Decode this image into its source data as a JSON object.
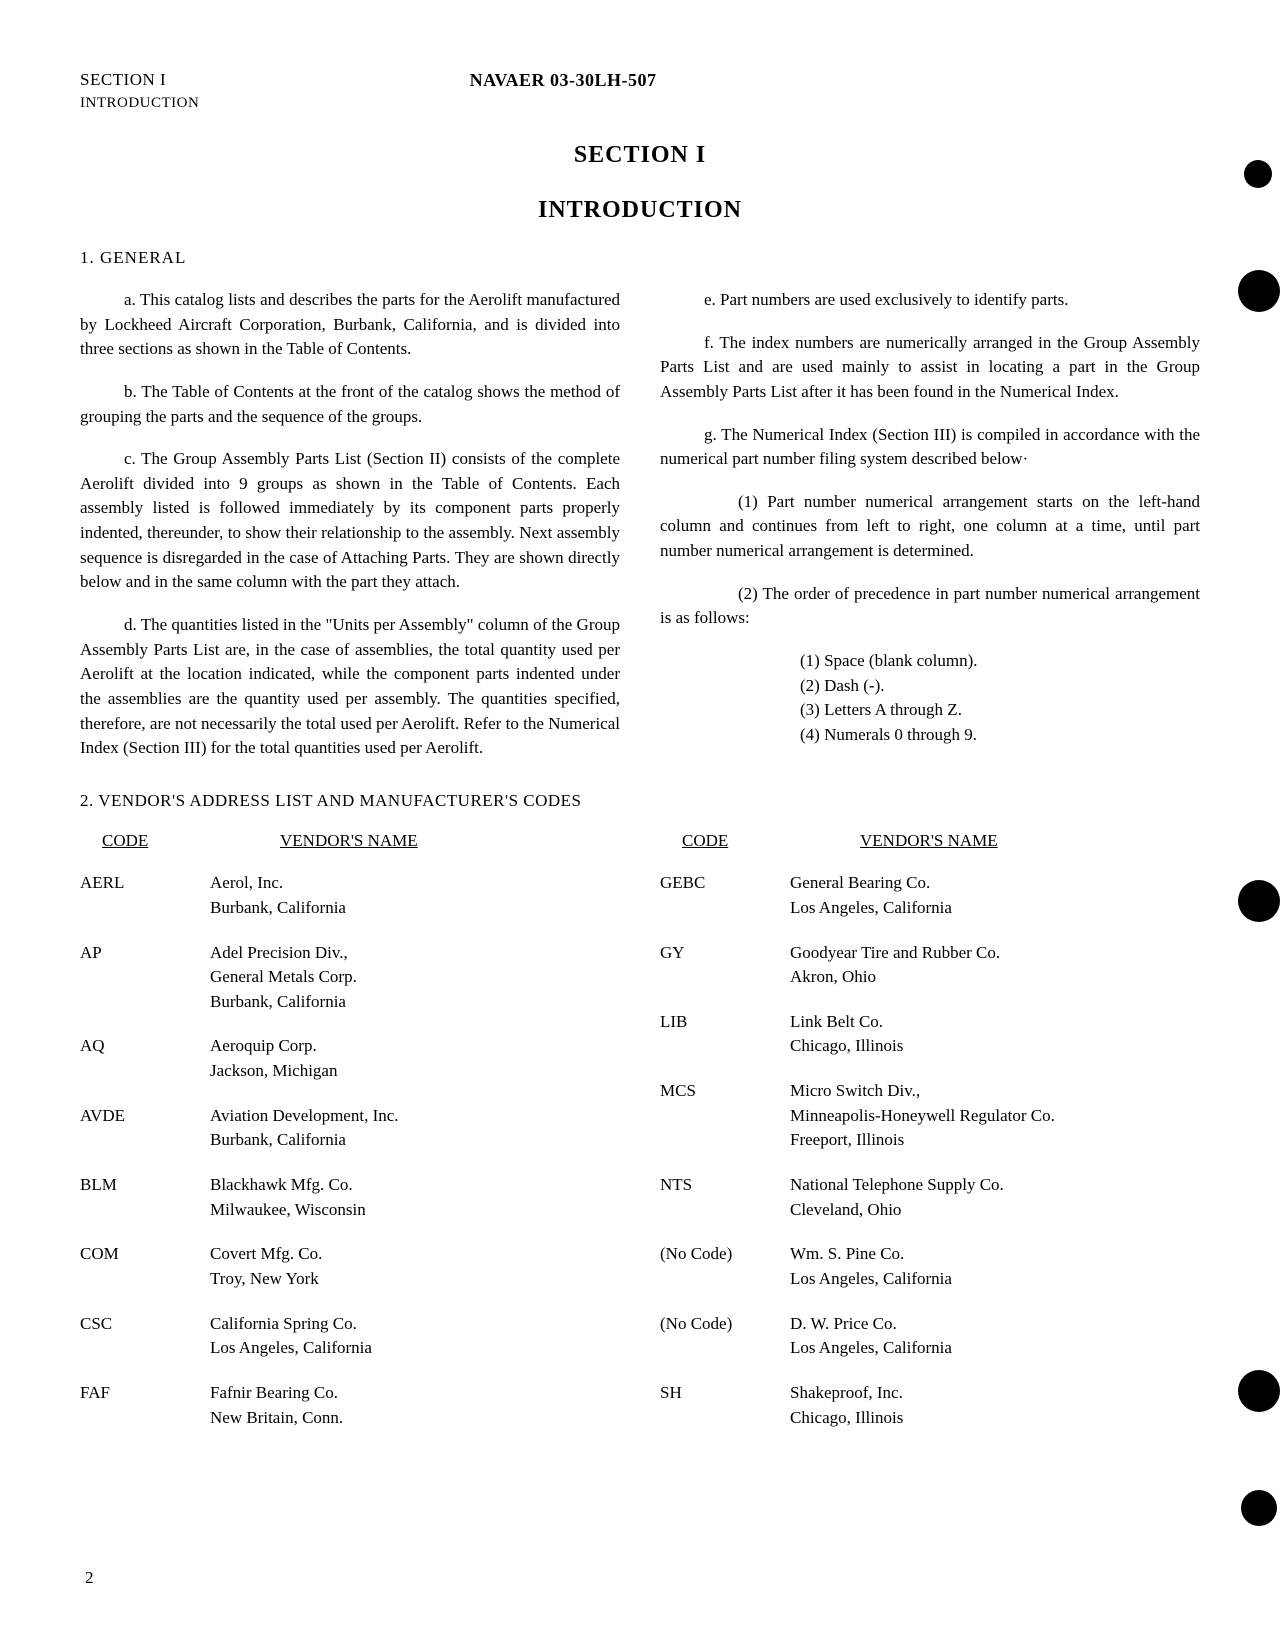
{
  "header": {
    "section_label": "SECTION I",
    "doc_number": "NAVAER 03-30LH-507",
    "intro_label": "INTRODUCTION"
  },
  "titles": {
    "section": "SECTION I",
    "introduction": "INTRODUCTION"
  },
  "headings": {
    "general": "1.  GENERAL",
    "vendor": "2.  VENDOR'S ADDRESS LIST AND MANUFACTURER'S CODES"
  },
  "paragraphs": {
    "a": "a. This catalog lists and describes the parts for the Aerolift manufactured by Lockheed Aircraft Corporation, Burbank, California, and is divided into three sections as shown in the Table of Contents.",
    "b": "b. The Table of Contents at the front of the catalog shows the method of grouping the parts and the sequence of the groups.",
    "c": "c. The Group Assembly Parts List (Section II) consists of the complete Aerolift divided into 9 groups as shown in the Table of Contents. Each assembly listed is followed immediately by its component parts properly indented, thereunder, to show their relationship to the assembly. Next assembly sequence is disregarded in the case of Attaching Parts. They are shown directly below and in the same column with the part they attach.",
    "d": "d. The quantities listed in the \"Units per Assembly\" column of the Group Assembly Parts List are, in the case of assemblies, the total quantity used per Aerolift at the location indicated, while the component parts indented under the assemblies are the quantity used per assembly. The quantities specified, therefore, are not necessarily the total used per Aerolift. Refer to the Numerical Index (Section III) for the total quantities used per Aerolift.",
    "e": "e. Part numbers are used exclusively to identify parts.",
    "f": "f. The index numbers are numerically arranged in the Group Assembly Parts List and are used mainly to assist in locating a part in the Group Assembly Parts List after it has been found in the Numerical Index.",
    "g": "g. The Numerical Index (Section III) is compiled in accordance with the numerical part number filing system described below·",
    "g1": "(1) Part number numerical arrangement starts on the left-hand column and continues from left to right, one column at a time, until part number numerical arrangement is determined.",
    "g2": "(2) The order of precedence in part number numerical arrangement is as follows:"
  },
  "precedence": {
    "p1": "(1) Space (blank column).",
    "p2": "(2) Dash (-).",
    "p3": "(3) Letters A through Z.",
    "p4": "(4) Numerals 0 through 9."
  },
  "vendor_headers": {
    "code": "CODE",
    "name": "VENDOR'S NAME"
  },
  "vendors_left": [
    {
      "code": "AERL",
      "name": "Aerol, Inc.\nBurbank, California"
    },
    {
      "code": "AP",
      "name": "Adel Precision Div.,\nGeneral Metals Corp.\nBurbank, California"
    },
    {
      "code": "AQ",
      "name": "Aeroquip Corp.\nJackson, Michigan"
    },
    {
      "code": "AVDE",
      "name": "Aviation Development, Inc.\nBurbank, California"
    },
    {
      "code": "BLM",
      "name": "Blackhawk Mfg. Co.\nMilwaukee, Wisconsin"
    },
    {
      "code": "COM",
      "name": "Covert Mfg. Co.\nTroy, New York"
    },
    {
      "code": "CSC",
      "name": "California Spring Co.\nLos Angeles, California"
    },
    {
      "code": "FAF",
      "name": "Fafnir Bearing Co.\nNew Britain, Conn."
    }
  ],
  "vendors_right": [
    {
      "code": "GEBC",
      "name": "General Bearing Co.\nLos Angeles, California"
    },
    {
      "code": "GY",
      "name": "Goodyear Tire and Rubber Co.\nAkron, Ohio"
    },
    {
      "code": "LIB",
      "name": "Link Belt Co.\nChicago, Illinois"
    },
    {
      "code": "MCS",
      "name": "Micro Switch Div.,\nMinneapolis-Honeywell Regulator Co.\nFreeport, Illinois"
    },
    {
      "code": "NTS",
      "name": "National Telephone Supply Co.\nCleveland, Ohio"
    },
    {
      "code": "(No Code)",
      "name": "Wm. S. Pine Co.\nLos Angeles, California"
    },
    {
      "code": "(No Code)",
      "name": "D. W. Price Co.\nLos Angeles, California"
    },
    {
      "code": "SH",
      "name": "Shakeproof, Inc.\nChicago, Illinois"
    }
  ],
  "page_number": "2"
}
